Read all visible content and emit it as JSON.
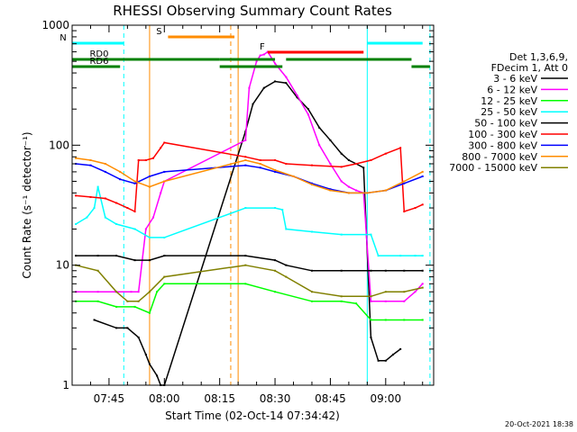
{
  "chart_data": {
    "type": "line",
    "title": "RHESSI Observing Summary Count Rates",
    "xlabel": "Start Time (02-Oct-14 07:34:42)",
    "ylabel": "Count Rate (s⁻¹ detector⁻¹)",
    "yscale": "log",
    "ylim": [
      1,
      1000
    ],
    "xlim": [
      "07:35",
      "09:13"
    ],
    "x_ticks": [
      "07:45",
      "08:00",
      "08:15",
      "08:30",
      "08:45",
      "09:00"
    ],
    "y_ticks": [
      "1",
      "10",
      "100",
      "1000"
    ],
    "grid": false,
    "legend_position": "right",
    "legend_header": [
      "Det 1,3,6,9,",
      "FDecim 1, Att 0"
    ],
    "timestamp": "20-Oct-2021 18:38",
    "series": [
      {
        "name": "3 - 6 keV",
        "color": "#000000",
        "x": [
          "07:41",
          "07:47",
          "07:50",
          "07:53",
          "07:55",
          "07:56",
          "07:58",
          "07:59",
          "08:00",
          "08:22",
          "08:24",
          "08:27",
          "08:30",
          "08:33",
          "08:36",
          "08:39",
          "08:42",
          "08:45",
          "08:48",
          "08:50",
          "08:52",
          "08:54",
          "08:56",
          "08:58",
          "09:00",
          "09:02",
          "09:04"
        ],
        "y": [
          3.5,
          3,
          3,
          2.5,
          1.8,
          1.5,
          1.2,
          1,
          1,
          130,
          220,
          300,
          340,
          330,
          250,
          200,
          140,
          110,
          85,
          75,
          70,
          65,
          2.5,
          1.6,
          1.6,
          1.8,
          2
        ]
      },
      {
        "name": "6 - 12 keV",
        "color": "#ff00ff",
        "x": [
          "07:36",
          "07:42",
          "07:47",
          "07:51",
          "07:53",
          "07:55",
          "07:57",
          "07:59",
          "08:00",
          "08:22",
          "08:23",
          "08:25",
          "08:26",
          "08:27",
          "08:28",
          "08:30",
          "08:33",
          "08:36",
          "08:39",
          "08:42",
          "08:45",
          "08:48",
          "08:50",
          "08:52",
          "08:54",
          "08:56",
          "09:00",
          "09:05",
          "09:08",
          "09:10"
        ],
        "y": [
          6,
          6,
          6,
          6,
          6,
          20,
          25,
          40,
          50,
          110,
          300,
          500,
          560,
          570,
          600,
          480,
          370,
          260,
          180,
          100,
          70,
          50,
          45,
          42,
          40,
          5,
          5,
          5,
          6,
          7
        ]
      },
      {
        "name": "12 - 25 keV",
        "color": "#00ff00",
        "x": [
          "07:36",
          "07:42",
          "07:47",
          "07:52",
          "07:56",
          "07:58",
          "08:00",
          "08:22",
          "08:30",
          "08:40",
          "08:48",
          "08:52",
          "08:56",
          "09:00",
          "09:05",
          "09:10"
        ],
        "y": [
          5,
          5,
          4.5,
          4.5,
          4,
          6,
          7,
          7,
          6,
          5,
          5,
          4.8,
          3.5,
          3.5,
          3.5,
          3.5
        ]
      },
      {
        "name": "25 - 50 keV",
        "color": "#00ffff",
        "x": [
          "07:36",
          "07:39",
          "07:41",
          "07:42",
          "07:44",
          "07:47",
          "07:52",
          "07:56",
          "08:00",
          "08:22",
          "08:30",
          "08:32",
          "08:33",
          "08:40",
          "08:48",
          "08:56",
          "08:58",
          "09:04",
          "09:08",
          "09:10"
        ],
        "y": [
          22,
          25,
          30,
          45,
          25,
          22,
          20,
          17,
          17,
          30,
          30,
          29,
          20,
          19,
          18,
          18,
          12,
          12,
          12,
          12
        ]
      },
      {
        "name": "50 - 100 keV",
        "color": "#000000",
        "x": [
          "07:36",
          "07:42",
          "07:47",
          "07:52",
          "07:56",
          "08:00",
          "08:22",
          "08:30",
          "08:33",
          "08:40",
          "08:48",
          "08:56",
          "09:00",
          "09:05",
          "09:10"
        ],
        "y": [
          12,
          12,
          12,
          11,
          11,
          12,
          12,
          11,
          10,
          9,
          9,
          9,
          9,
          9,
          9
        ]
      },
      {
        "name": "100 - 300 keV",
        "color": "#ff0000",
        "x": [
          "07:36",
          "07:40",
          "07:44",
          "07:47",
          "07:50",
          "07:52",
          "07:53",
          "07:55",
          "07:57",
          "07:59",
          "08:00",
          "08:22",
          "08:26",
          "08:30",
          "08:33",
          "08:40",
          "08:48",
          "08:52",
          "08:56",
          "09:00",
          "09:04",
          "09:05",
          "09:08",
          "09:10"
        ],
        "y": [
          38,
          37,
          36,
          33,
          30,
          28,
          75,
          75,
          78,
          95,
          105,
          80,
          75,
          75,
          70,
          68,
          66,
          70,
          75,
          85,
          95,
          28,
          30,
          32
        ]
      },
      {
        "name": "300 - 800 keV",
        "color": "#0000ff",
        "x": [
          "07:36",
          "07:40",
          "07:44",
          "07:48",
          "07:52",
          "07:56",
          "08:00",
          "08:22",
          "08:26",
          "08:30",
          "08:35",
          "08:40",
          "08:45",
          "08:50",
          "08:55",
          "09:00",
          "09:05",
          "09:10"
        ],
        "y": [
          70,
          68,
          60,
          52,
          48,
          55,
          60,
          68,
          65,
          60,
          55,
          48,
          43,
          40,
          40,
          42,
          48,
          55
        ]
      },
      {
        "name": "800 - 7000 keV",
        "color": "#ff8c00",
        "x": [
          "07:36",
          "07:40",
          "07:44",
          "07:48",
          "07:52",
          "07:56",
          "08:00",
          "08:22",
          "08:26",
          "08:30",
          "08:35",
          "08:40",
          "08:45",
          "08:50",
          "08:55",
          "09:00",
          "09:05",
          "09:10"
        ],
        "y": [
          78,
          75,
          70,
          60,
          50,
          45,
          50,
          75,
          70,
          62,
          55,
          47,
          42,
          40,
          40,
          42,
          50,
          60
        ]
      },
      {
        "name": "7000 - 15000 keV",
        "color": "#808000",
        "x": [
          "07:36",
          "07:42",
          "07:47",
          "07:50",
          "07:53",
          "07:56",
          "08:00",
          "08:22",
          "08:30",
          "08:33",
          "08:40",
          "08:48",
          "08:56",
          "09:00",
          "09:05",
          "09:10"
        ],
        "y": [
          10,
          9,
          6,
          5,
          5,
          6,
          8,
          10,
          9,
          8,
          6,
          5.5,
          5.5,
          6,
          6,
          6.5
        ]
      }
    ],
    "status_bars": [
      {
        "label": "S",
        "color": "#ff8c00",
        "from": "08:01",
        "to": "08:19"
      },
      {
        "label": "N",
        "color": "#00ffff",
        "from": "07:35",
        "to": "07:49"
      },
      {
        "label": "N",
        "color": "#00ffff",
        "from": "08:55",
        "to": "09:10"
      },
      {
        "label": "F",
        "color": "#ff0000",
        "from": "08:28",
        "to": "08:54"
      },
      {
        "label": "RD0",
        "color": "#008000",
        "from": "07:35",
        "to": "08:15"
      },
      {
        "label": "RD0",
        "color": "#008000",
        "from": "08:15",
        "to": "08:30"
      },
      {
        "label": "RD0",
        "color": "#008000",
        "from": "08:33",
        "to": "09:07"
      },
      {
        "label": "RD6",
        "color": "#008000",
        "from": "07:35",
        "to": "07:48"
      },
      {
        "label": "RD6",
        "color": "#008000",
        "from": "08:15",
        "to": "08:32"
      },
      {
        "label": "RD6",
        "color": "#008000",
        "from": "09:07",
        "to": "09:12"
      }
    ],
    "markers": [
      {
        "time": "07:35",
        "color": "#00ffff",
        "style": "solid"
      },
      {
        "time": "07:49",
        "color": "#00ffff",
        "style": "dashed"
      },
      {
        "time": "07:56",
        "color": "#ff8c00",
        "style": "solid"
      },
      {
        "time": "08:18",
        "color": "#ff8c00",
        "style": "dashed"
      },
      {
        "time": "08:20",
        "color": "#ff8c00",
        "style": "solid"
      },
      {
        "time": "08:55",
        "color": "#00ffff",
        "style": "solid"
      },
      {
        "time": "09:12",
        "color": "#00ffff",
        "style": "dashed"
      }
    ]
  }
}
